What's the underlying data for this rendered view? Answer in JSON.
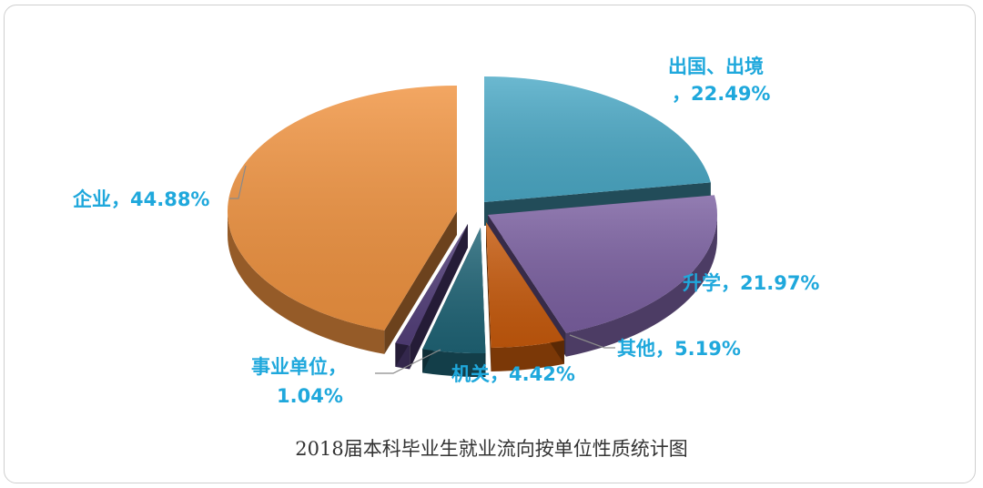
{
  "chart_data": {
    "type": "pie",
    "title": "2018届本科毕业生就业流向按单位性质统计图",
    "slices": [
      {
        "name": "企业",
        "value": 44.88,
        "label": "企业，44.88%",
        "color": "#F09340"
      },
      {
        "name": "出国、出境",
        "value": 22.49,
        "label": "出国、出境，22.49%",
        "color": "#4BA9C6"
      },
      {
        "name": "升学",
        "value": 21.97,
        "label": "升学，21.97%",
        "color": "#7B60A1"
      },
      {
        "name": "其他",
        "value": 5.19,
        "label": "其他，5.19%",
        "color": "#C75A0C"
      },
      {
        "name": "机关",
        "value": 4.42,
        "label": "机关，4.42%",
        "color": "#1F6476"
      },
      {
        "name": "事业单位",
        "value": 1.04,
        "label": "事业单位，1.04%",
        "color": "#533F7A"
      }
    ],
    "labels": {
      "qiye": "企业，44.88%",
      "chuguo_1": "出国、出境",
      "chuguo_2": "，22.49%",
      "shengxue": "升学，21.97%",
      "qita": "其他，5.19%",
      "jiguan": "机关，4.42%",
      "shiye_1": "事业单位，",
      "shiye_2": "1.04%"
    },
    "label_color": "#1FA8DC",
    "exploded": true,
    "style": "3d"
  }
}
